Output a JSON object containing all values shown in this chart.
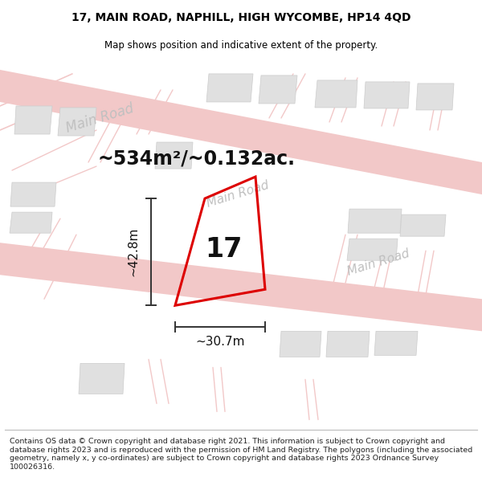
{
  "title_line1": "17, MAIN ROAD, NAPHILL, HIGH WYCOMBE, HP14 4QD",
  "title_line2": "Map shows position and indicative extent of the property.",
  "footer_text": "Contains OS data © Crown copyright and database right 2021. This information is subject to Crown copyright and database rights 2023 and is reproduced with the permission of HM Land Registry. The polygons (including the associated geometry, namely x, y co-ordinates) are subject to Crown copyright and database rights 2023 Ordnance Survey 100026316.",
  "area_label": "~534m²/~0.132ac.",
  "number_label": "17",
  "dim_horizontal": "~30.7m",
  "dim_vertical": "~42.8m",
  "road_color": "#f2c8c8",
  "building_color": "#e0e0e0",
  "building_edge": "#cccccc",
  "plot_outline_color": "#dd0000",
  "dim_line_color": "#333333",
  "map_bg": "#ffffff",
  "road_label_color": "#c0c0c0",
  "road_name": "Main Road",
  "figsize": [
    6.0,
    6.25
  ],
  "dpi": 100,
  "title_fontsize": 10,
  "subtitle_fontsize": 8.5,
  "footer_fontsize": 6.8
}
